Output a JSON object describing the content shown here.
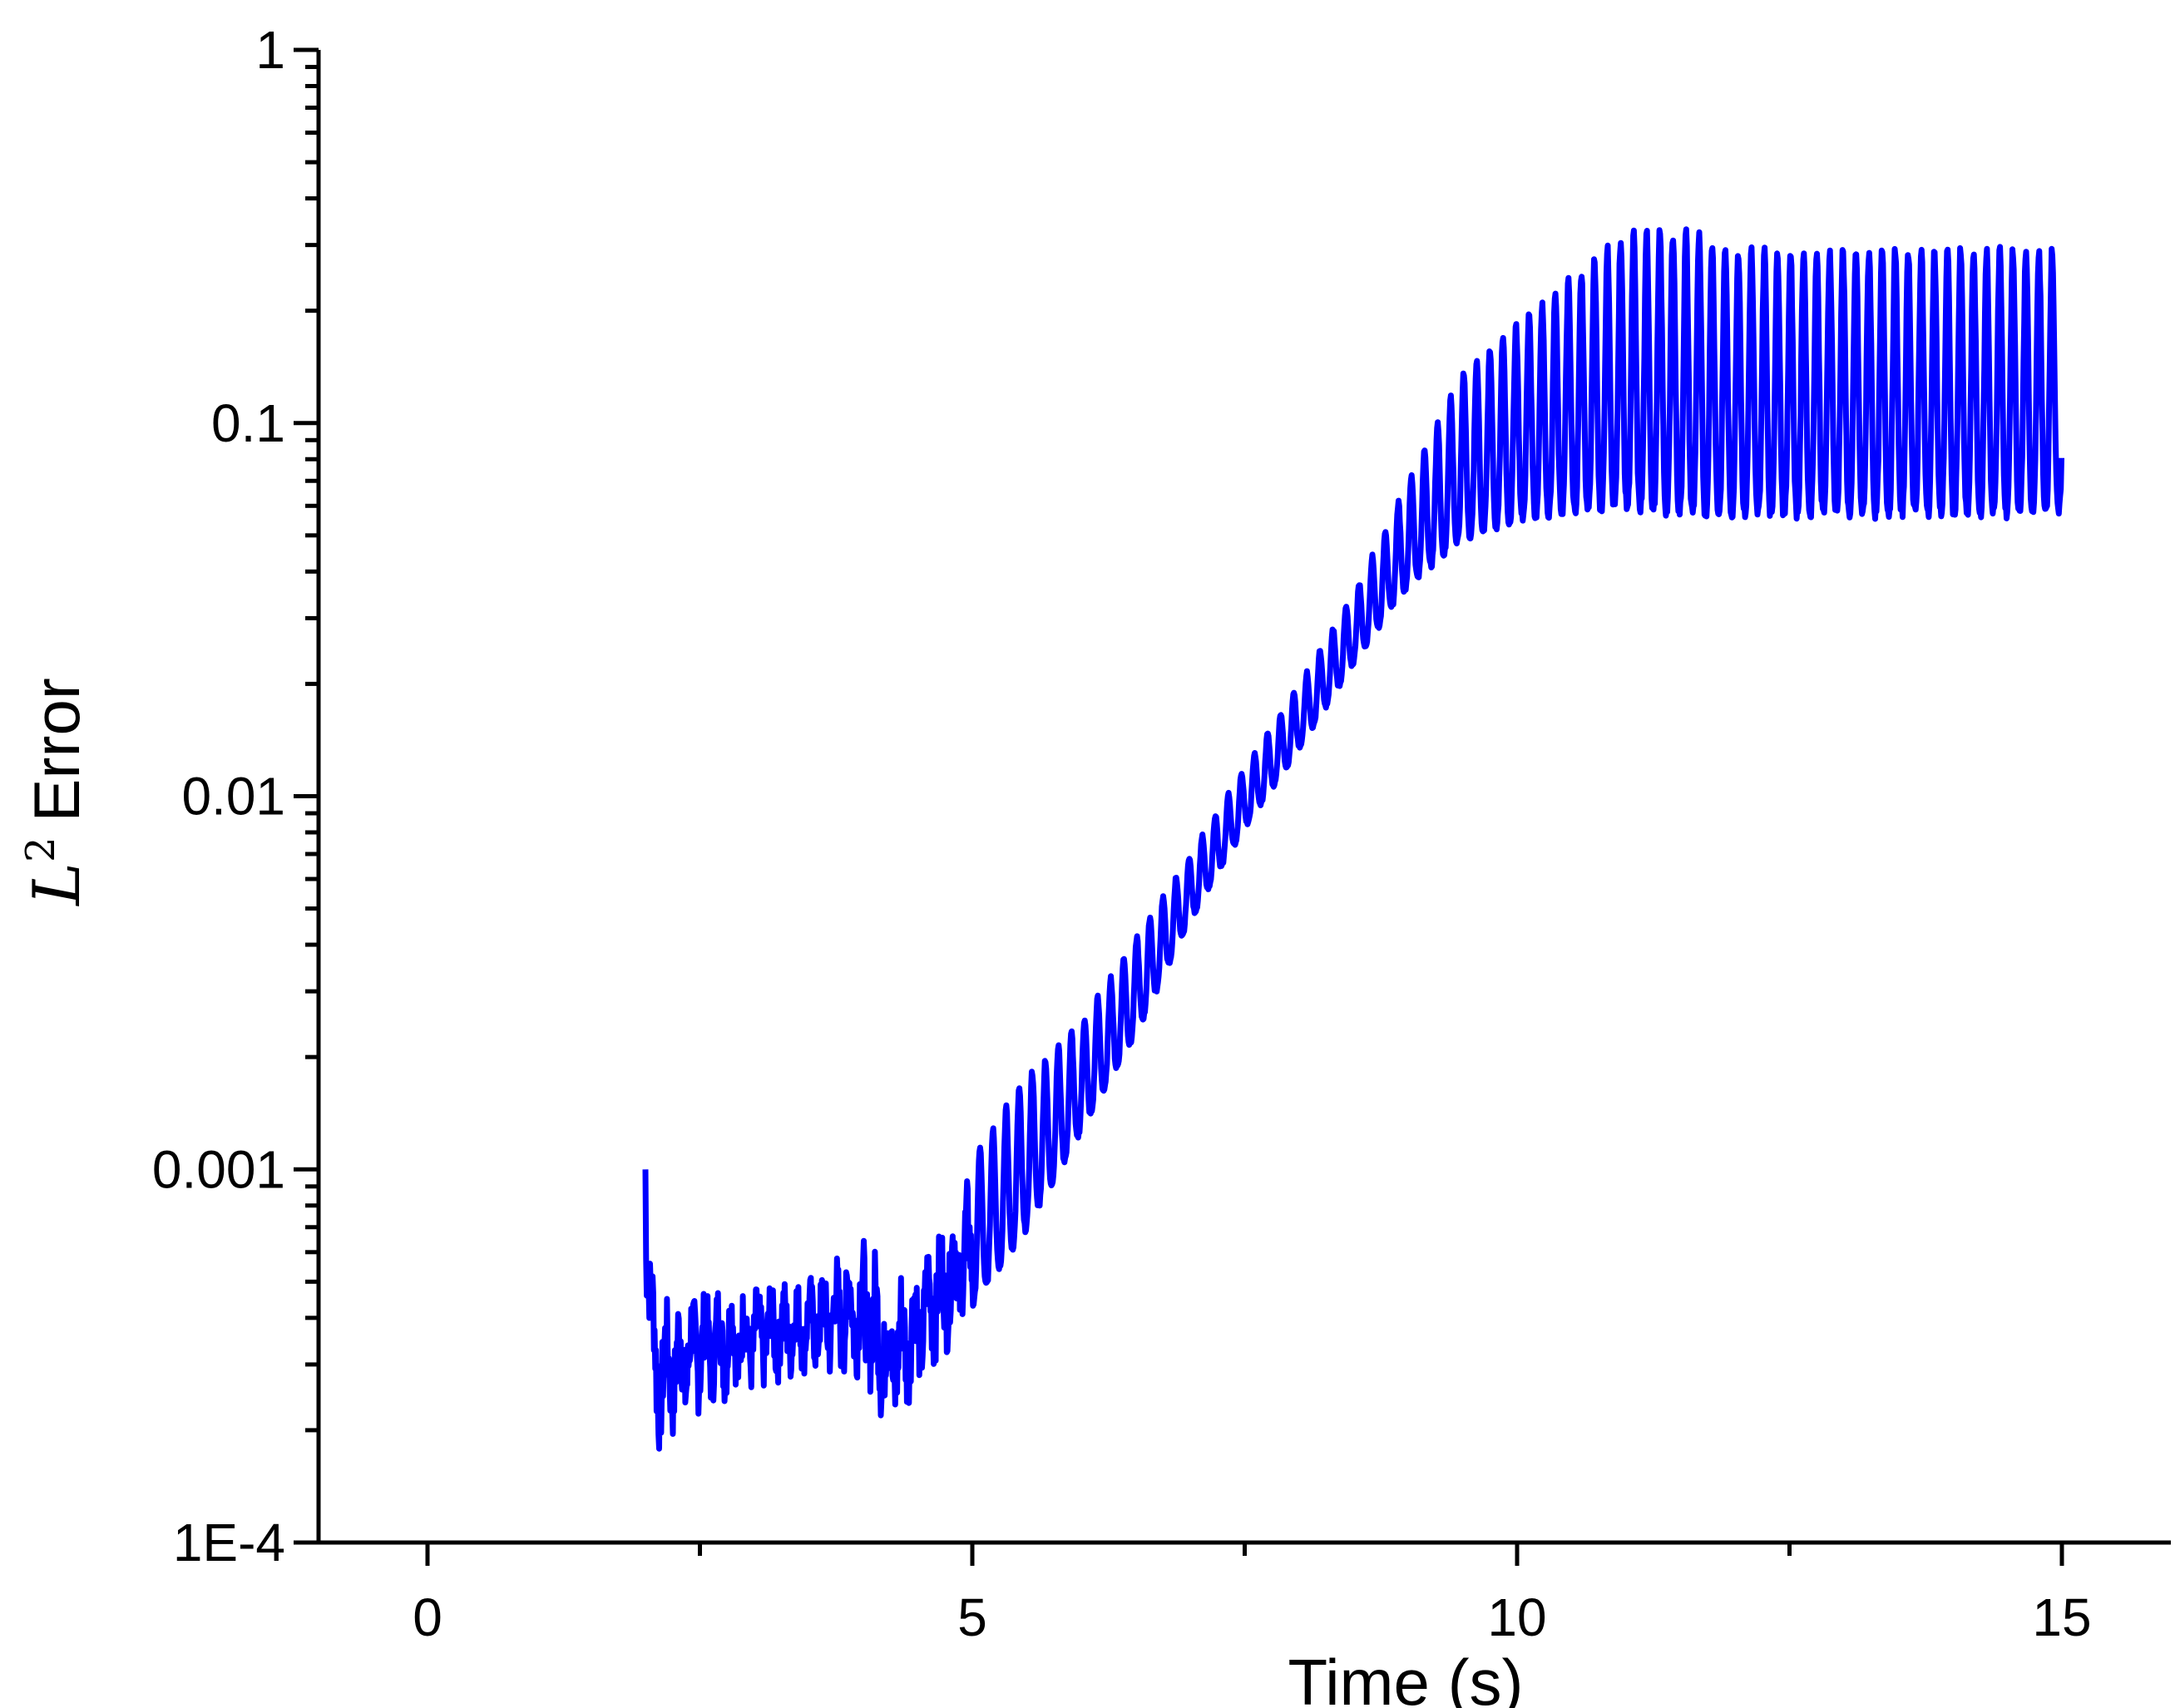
{
  "chart_data": {
    "type": "line",
    "xlabel": "Time (s)",
    "ylabel_base": "L",
    "ylabel_sup": "2",
    "ylabel_rest": "Error",
    "xlim": [
      -1,
      16
    ],
    "ylim": [
      0.0001,
      1
    ],
    "y_scale": "log",
    "x_ticks": [
      0,
      5,
      10,
      15
    ],
    "x_tick_labels": [
      "0",
      "5",
      "10",
      "15"
    ],
    "y_ticks": [
      1,
      0.1,
      0.01,
      0.001,
      0.0001
    ],
    "y_tick_labels": [
      "1",
      "0.1",
      "0.01",
      "0.001",
      "1E-4"
    ],
    "grid": false,
    "series": [
      {
        "color": "#0000ff",
        "envelope": {
          "x": [
            2.0,
            2.1,
            2.5,
            3.0,
            3.5,
            4.0,
            4.25,
            4.5,
            5.0,
            5.5,
            6.0,
            6.5,
            7.0,
            7.5,
            8.0,
            8.5,
            9.0,
            9.5,
            10.0,
            10.5,
            11.0,
            11.5,
            12.0,
            12.5,
            13.0,
            13.5,
            14.0,
            14.5,
            15.0
          ],
          "lower": [
            0.0005,
            0.00017,
            0.00022,
            0.00025,
            0.00028,
            0.00026,
            0.00018,
            0.00025,
            0.0004,
            0.00065,
            0.0012,
            0.0022,
            0.0045,
            0.008,
            0.013,
            0.022,
            0.035,
            0.045,
            0.05,
            0.052,
            0.052,
            0.05,
            0.05,
            0.05,
            0.05,
            0.05,
            0.05,
            0.05,
            0.05
          ],
          "upper": [
            0.001,
            0.0005,
            0.00055,
            0.00055,
            0.00056,
            0.00078,
            0.0006,
            0.00065,
            0.0011,
            0.0018,
            0.0025,
            0.0042,
            0.007,
            0.012,
            0.02,
            0.035,
            0.07,
            0.14,
            0.19,
            0.25,
            0.33,
            0.34,
            0.3,
            0.3,
            0.3,
            0.3,
            0.3,
            0.3,
            0.3
          ],
          "period": 0.12
        }
      }
    ]
  }
}
